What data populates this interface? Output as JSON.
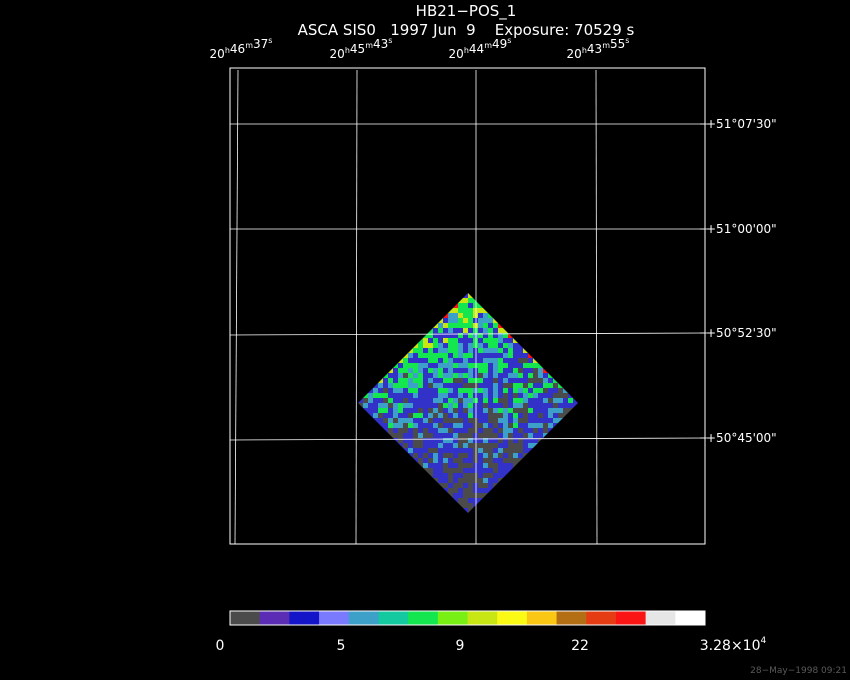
{
  "title": "HB21−POS_1",
  "subtitle": "ASCA SIS0   1997 Jun  9    Exposure: 70529 s",
  "ra_ticks": [
    {
      "h": "20",
      "m": "46",
      "s": "37"
    },
    {
      "h": "20",
      "m": "45",
      "s": "43"
    },
    {
      "h": "20",
      "m": "44",
      "s": "49"
    },
    {
      "h": "20",
      "m": "43",
      "s": "55"
    }
  ],
  "dec_ticks": [
    "+51°07'30\"",
    "+51°00'00\"",
    "+50°52'30\"",
    "+50°45'00\""
  ],
  "colorbar": {
    "colors": [
      "#4b4b4b",
      "#5a2db4",
      "#1414c8",
      "#7a7aff",
      "#3ca0c8",
      "#14c8a0",
      "#14e650",
      "#78f014",
      "#c8e614",
      "#fafa14",
      "#fac814",
      "#b46e14",
      "#e63c14",
      "#fa1414",
      "#e6e6e6",
      "#ffffff"
    ],
    "labels": [
      "0",
      "5",
      "9",
      "22",
      "3.28×10^4"
    ]
  },
  "image_colors": {
    "bg": "#4b4b4b",
    "low": "#3232c8",
    "mid": "#3ca0c8",
    "high": "#14e650",
    "peak": "#c8e614",
    "edge": "#fa1414"
  },
  "timestamp": "28−May−1998 09:21"
}
